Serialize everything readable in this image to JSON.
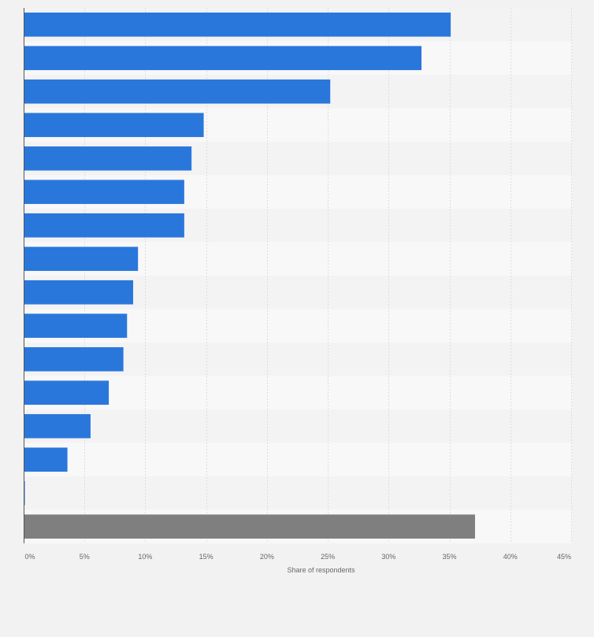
{
  "chart_data": {
    "type": "bar",
    "orientation": "horizontal",
    "title": "",
    "xlabel": "Share of respondents",
    "ylabel": "",
    "xlim": [
      0,
      45
    ],
    "x_ticks": [
      0,
      5,
      10,
      15,
      20,
      25,
      30,
      35,
      40,
      45
    ],
    "x_tick_labels": [
      "0%",
      "5%",
      "10%",
      "15%",
      "20%",
      "25%",
      "30%",
      "35%",
      "40%",
      "45%"
    ],
    "categories": [
      "",
      "",
      "",
      "",
      "",
      "",
      "",
      "",
      "",
      "",
      "",
      "",
      "",
      "",
      "",
      ""
    ],
    "values": [
      35.1,
      32.7,
      25.2,
      14.8,
      13.8,
      13.2,
      13.2,
      9.4,
      9.0,
      8.5,
      8.2,
      7.0,
      5.5,
      3.6,
      0.1,
      37.1
    ],
    "bar_colors": [
      "#2a77dc",
      "#2a77dc",
      "#2a77dc",
      "#2a77dc",
      "#2a77dc",
      "#2a77dc",
      "#2a77dc",
      "#2a77dc",
      "#2a77dc",
      "#2a77dc",
      "#2a77dc",
      "#2a77dc",
      "#2a77dc",
      "#2a77dc",
      "#2a77dc",
      "#7f7f7f"
    ],
    "grid": true,
    "colors": {
      "bar": "#2a77dc",
      "highlight_bar": "#7f7f7f",
      "band_light": "#f8f8f8",
      "band_dark": "#f3f3f3",
      "grid": "#dddddd",
      "axis": "#555555"
    }
  }
}
